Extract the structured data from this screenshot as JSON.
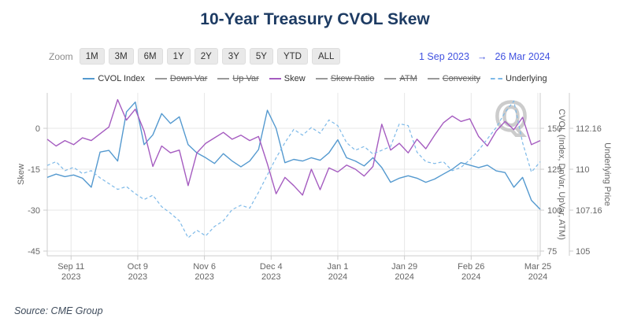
{
  "title": "10-Year Treasury CVOL Skew",
  "toolbar": {
    "zoom_label": "Zoom",
    "zoom_buttons": [
      "1M",
      "3M",
      "6M",
      "1Y",
      "2Y",
      "3Y",
      "5Y",
      "YTD",
      "ALL"
    ],
    "date_range": {
      "start": "1 Sep 2023",
      "arrow": "→",
      "end": "26 Mar 2024"
    }
  },
  "legend": [
    {
      "label": "CVOL Index",
      "color": "#5499cf",
      "active": true,
      "dashed": false
    },
    {
      "label": "Down Var",
      "color": "#999999",
      "active": false,
      "dashed": false
    },
    {
      "label": "Up Var",
      "color": "#999999",
      "active": false,
      "dashed": false
    },
    {
      "label": "Skew",
      "color": "#a55cc0",
      "active": true,
      "dashed": false
    },
    {
      "label": "Skew Ratio",
      "color": "#999999",
      "active": false,
      "dashed": false
    },
    {
      "label": "ATM",
      "color": "#999999",
      "active": false,
      "dashed": false
    },
    {
      "label": "Convexity",
      "color": "#999999",
      "active": false,
      "dashed": false
    },
    {
      "label": "Underlying",
      "color": "#7db9e8",
      "active": true,
      "dashed": true
    }
  ],
  "watermark": "Q",
  "source": "Source: CME Group",
  "chart_data": {
    "type": "line",
    "title": "10-Year Treasury CVOL Skew",
    "date_start": "1 Sep 2023",
    "date_end": "26 Mar 2024",
    "grid": true,
    "legend_position": "top",
    "x_total_days": 207,
    "x_ticks": [
      {
        "line1": "Sep 11",
        "line2": "2023",
        "day": 10
      },
      {
        "line1": "Oct 9",
        "line2": "2023",
        "day": 38
      },
      {
        "line1": "Nov 6",
        "line2": "2023",
        "day": 66
      },
      {
        "line1": "Dec 4",
        "line2": "2023",
        "day": 94
      },
      {
        "line1": "Jan 1",
        "line2": "2024",
        "day": 122
      },
      {
        "line1": "Jan 29",
        "line2": "2024",
        "day": 150
      },
      {
        "line1": "Feb 26",
        "line2": "2024",
        "day": 178
      },
      {
        "line1": "Mar 25",
        "line2": "2024",
        "day": 206
      }
    ],
    "axes": {
      "left": {
        "title": "Skew",
        "ticks": [
          "0",
          "-15",
          "-30",
          "-45"
        ],
        "range": [
          -47.3,
          13.0
        ]
      },
      "right1": {
        "title": "CVOL (Index, DnVar, UpVar, ATM)",
        "ticks": [
          "150",
          "125",
          "100",
          "75"
        ],
        "range": [
          71.2,
          171.6
        ]
      },
      "right2": {
        "title": "Underlying Price",
        "ticks": [
          "112.16",
          "110",
          "107.16",
          "105"
        ],
        "range": [
          104.6,
          114.1
        ]
      }
    },
    "series": [
      {
        "name": "CVOL Index",
        "axis": "cvol",
        "color": "#5499cf",
        "dash": false,
        "values": [
          120,
          122,
          120.5,
          121.5,
          119.5,
          114,
          135.5,
          136.5,
          130,
          160,
          166,
          140,
          146,
          159,
          153,
          157,
          140,
          135,
          132,
          128.5,
          134.5,
          130,
          126.5,
          130,
          137,
          161,
          150,
          129,
          131,
          130,
          132,
          130.5,
          135,
          143,
          132,
          130,
          127,
          132,
          126,
          117,
          119.5,
          121,
          119.5,
          117,
          119,
          122,
          125,
          129,
          127.5,
          126,
          127.5,
          124,
          123,
          114,
          120,
          106,
          100.5
        ]
      },
      {
        "name": "Skew",
        "axis": "skew",
        "color": "#a55cc0",
        "dash": false,
        "values": [
          -4,
          -6.5,
          -4.5,
          -6,
          -3.5,
          -4.5,
          -2,
          0.5,
          10.5,
          3,
          7,
          -1,
          -14,
          -6.5,
          -9,
          -8,
          -21,
          -9,
          -5.5,
          -3.5,
          -1.5,
          -4,
          -2.5,
          -4.5,
          -3,
          -13,
          -24,
          -18,
          -21,
          -24.5,
          -15,
          -22.5,
          -14.5,
          -16,
          -13.5,
          -15,
          -17.5,
          -14,
          1.5,
          -8,
          -5.5,
          -9,
          -4,
          -7.5,
          -2.5,
          2,
          4.5,
          2.5,
          3.5,
          -3,
          -6.5,
          -1,
          2.5,
          -0.5,
          4,
          -6,
          -4.5
        ]
      },
      {
        "name": "Underlying",
        "axis": "underlying",
        "color": "#7db9e8",
        "dash": true,
        "values": [
          110.2,
          110.4,
          109.9,
          110.1,
          109.7,
          109.9,
          109.4,
          109.0,
          108.6,
          108.8,
          108.3,
          107.9,
          108.2,
          107.4,
          107.0,
          106.6,
          105.7,
          106.1,
          105.8,
          106.3,
          106.6,
          107.2,
          107.5,
          107.3,
          108.4,
          109.6,
          110.6,
          111.4,
          112.1,
          111.8,
          112.2,
          111.9,
          112.6,
          112.3,
          111.4,
          111.0,
          111.2,
          110.8,
          111.0,
          111.2,
          112.4,
          112.3,
          110.9,
          110.4,
          110.3,
          110.4,
          109.9,
          110.1,
          110.5,
          111.0,
          111.6,
          112.2,
          113.0,
          113.6,
          111.4,
          109.8,
          110.4
        ]
      }
    ]
  }
}
